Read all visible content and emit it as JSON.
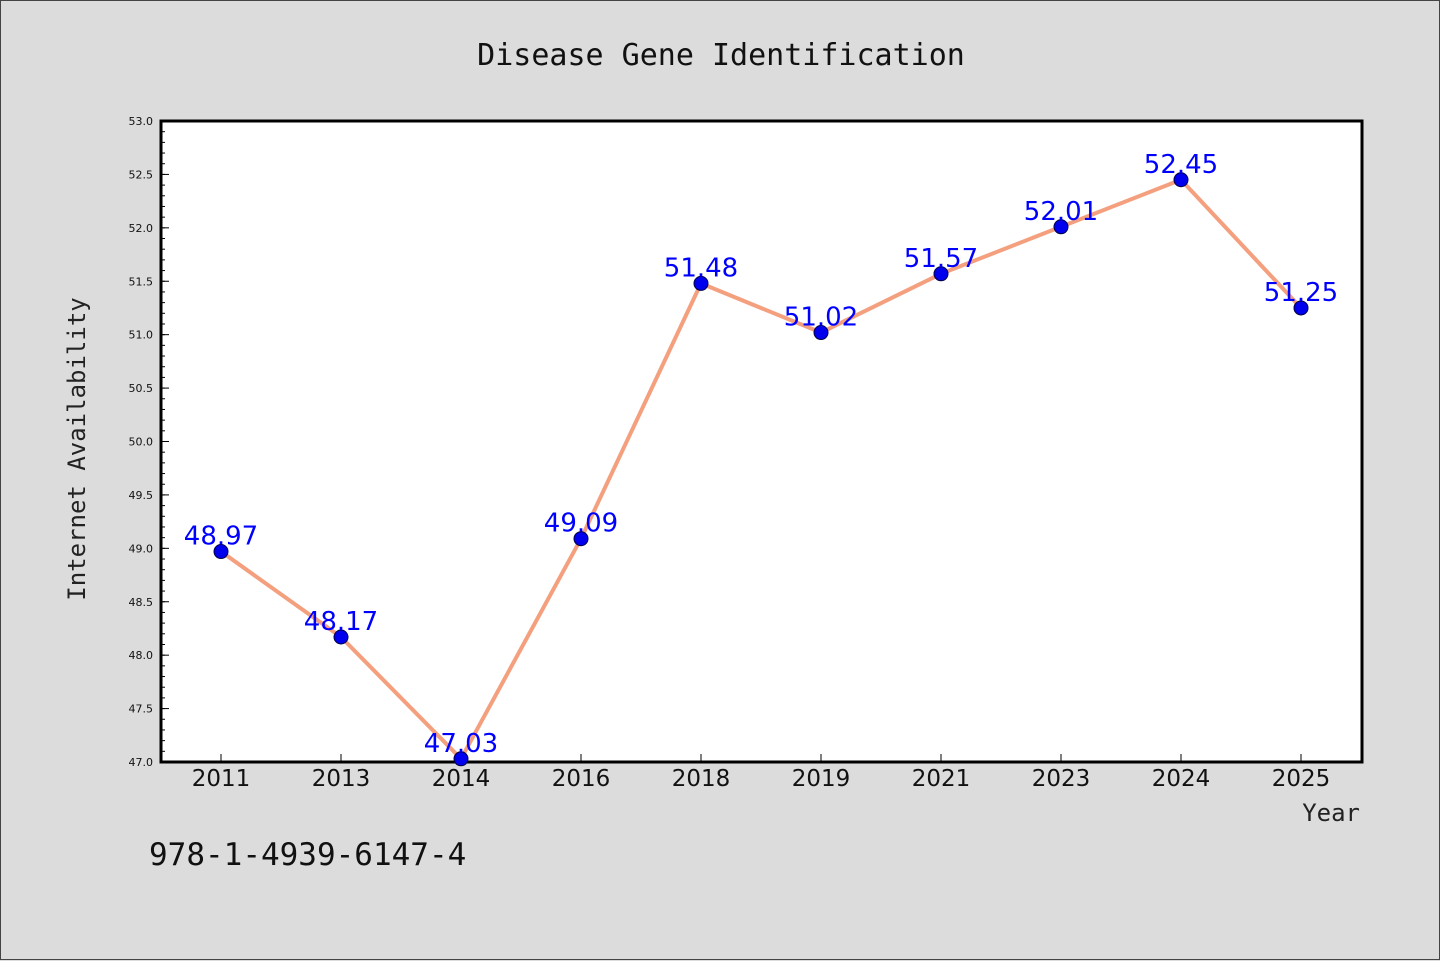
{
  "chart_data": {
    "type": "line",
    "title": "Disease Gene Identification",
    "xlabel": "Year",
    "ylabel": "Internet Availability",
    "categories": [
      "2011",
      "2013",
      "2014",
      "2016",
      "2018",
      "2019",
      "2021",
      "2023",
      "2024",
      "2025"
    ],
    "series": [
      {
        "values": [
          48.97,
          48.17,
          47.03,
          49.09,
          51.48,
          51.02,
          51.57,
          52.01,
          52.45,
          51.25
        ],
        "labels": [
          "48.97",
          "48.17",
          "47.03",
          "49.09",
          "51.48",
          "51.02",
          "51.57",
          "52.01",
          "52.45",
          "51.25"
        ]
      }
    ],
    "ylim": [
      47.0,
      53.0
    ],
    "yticks": [
      "47.0",
      "47.5",
      "48.0",
      "48.5",
      "49.0",
      "49.5",
      "50.0",
      "50.5",
      "51.0",
      "51.5",
      "52.0",
      "52.5",
      "53.0"
    ],
    "grid": false,
    "line_color": "#f4a07e",
    "marker_color": "#0000ee",
    "label_color": "#0000ff",
    "background_color": "#dcdcdc",
    "plot_background_color": "#ffffff"
  },
  "footnote": "978-1-4939-6147-4"
}
